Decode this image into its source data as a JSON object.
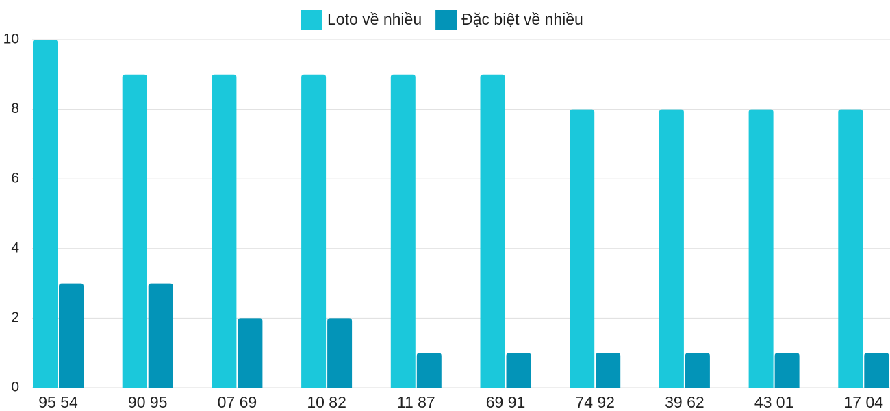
{
  "chart_data": {
    "type": "bar",
    "categories": [
      "95 54",
      "90 95",
      "07 69",
      "10 82",
      "11 87",
      "69 91",
      "74 92",
      "39 62",
      "43 01",
      "17 04"
    ],
    "series": [
      {
        "name": "Loto về nhiều",
        "color": "#1bc8db",
        "values": [
          10,
          9,
          9,
          9,
          9,
          9,
          8,
          8,
          8,
          8
        ]
      },
      {
        "name": "Đặc biệt về nhiều",
        "color": "#0394b8",
        "values": [
          3,
          3,
          2,
          2,
          1,
          1,
          1,
          1,
          1,
          1
        ]
      }
    ],
    "ylim": [
      0,
      10
    ],
    "yticks": [
      0,
      2,
      4,
      6,
      8,
      10
    ],
    "grid": true,
    "legend": "top"
  }
}
